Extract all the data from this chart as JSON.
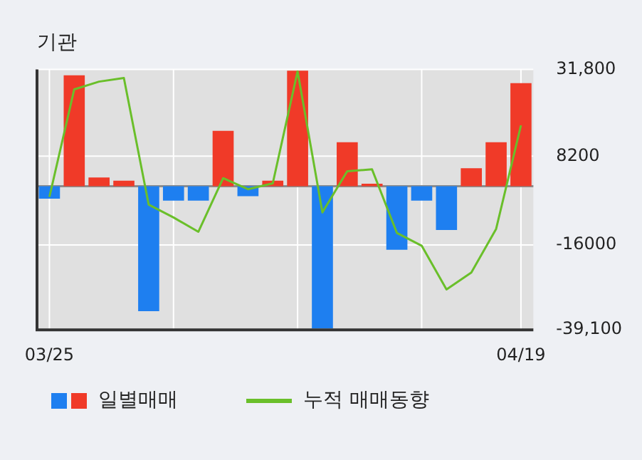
{
  "chart_data": {
    "type": "bar",
    "title": "기관",
    "categories": [
      "03/25",
      null,
      null,
      null,
      null,
      null,
      null,
      null,
      null,
      null,
      null,
      null,
      null,
      null,
      null,
      null,
      null,
      null,
      null,
      "04/19"
    ],
    "series": [
      {
        "name": "일별매매",
        "colors": [
          "#1e7ff0",
          "#f03a28",
          "#f03a28",
          "#f03a28",
          "#1e7ff0",
          "#1e7ff0",
          "#1e7ff0",
          "#f03a28",
          "#1e7ff0",
          "#f03a28",
          "#f03a28",
          "#1e7ff0",
          "#f03a28",
          "#f03a28",
          "#1e7ff0",
          "#1e7ff0",
          "#1e7ff0",
          "#f03a28",
          "#f03a28",
          "#f03a28"
        ],
        "values": [
          -3400,
          30200,
          2400,
          1500,
          -34000,
          -3900,
          -3900,
          15100,
          -2700,
          1500,
          31500,
          -38700,
          12000,
          700,
          -17300,
          -3900,
          -11900,
          4900,
          12000,
          28100
        ]
      },
      {
        "type": "line",
        "name": "누적 매매동향",
        "color": "#6abf2a",
        "marker": "none",
        "values": [
          -2900,
          26400,
          28500,
          29500,
          -5000,
          -8500,
          -12400,
          2200,
          -800,
          800,
          31300,
          -7100,
          4100,
          4600,
          -12700,
          -16200,
          -28100,
          -23500,
          -11600,
          16600
        ]
      }
    ],
    "ylim": [
      -39100,
      31800
    ],
    "yticks": [
      {
        "value": -39100,
        "label": "-39,100"
      },
      -16000,
      8200,
      {
        "value": 31800,
        "label": "31,800"
      }
    ],
    "ref_lines": [
      {
        "axis": "y",
        "value": 0,
        "color": "#8c8c8c"
      }
    ],
    "grid": true,
    "legend": "bottom"
  }
}
